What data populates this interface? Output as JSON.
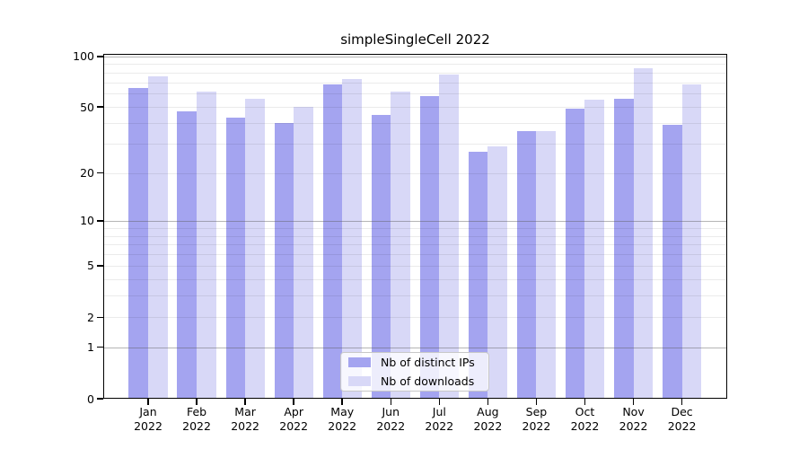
{
  "chart_data": {
    "type": "bar",
    "title": "simpleSingleCell 2022",
    "categories": [
      "Jan",
      "Feb",
      "Mar",
      "Apr",
      "May",
      "Jun",
      "Jul",
      "Aug",
      "Sep",
      "Oct",
      "Nov",
      "Dec"
    ],
    "xtick_year": "2022",
    "series": [
      {
        "name": "Nb of distinct IPs",
        "color": "#a4a4f0",
        "values": [
          65,
          47,
          43,
          40,
          68,
          45,
          58,
          27,
          36,
          49,
          56,
          39
        ]
      },
      {
        "name": "Nb of downloads",
        "color": "#d8d8f7",
        "values": [
          76,
          62,
          56,
          50,
          73,
          62,
          78,
          29,
          36,
          55,
          85,
          68
        ]
      }
    ],
    "yscale": "log1p",
    "ylim": [
      0,
      103
    ],
    "yticks": [
      0,
      1,
      2,
      5,
      10,
      20,
      50,
      100
    ],
    "minor_gridlines": [
      2,
      3,
      4,
      5,
      6,
      7,
      8,
      9,
      20,
      30,
      40,
      50,
      60,
      70,
      80,
      90
    ],
    "major_gridlines": [
      1,
      10,
      100
    ],
    "grid": "on",
    "legend_position": "bottom-center",
    "axis_color": "#000000",
    "background_color": "#ffffff"
  }
}
